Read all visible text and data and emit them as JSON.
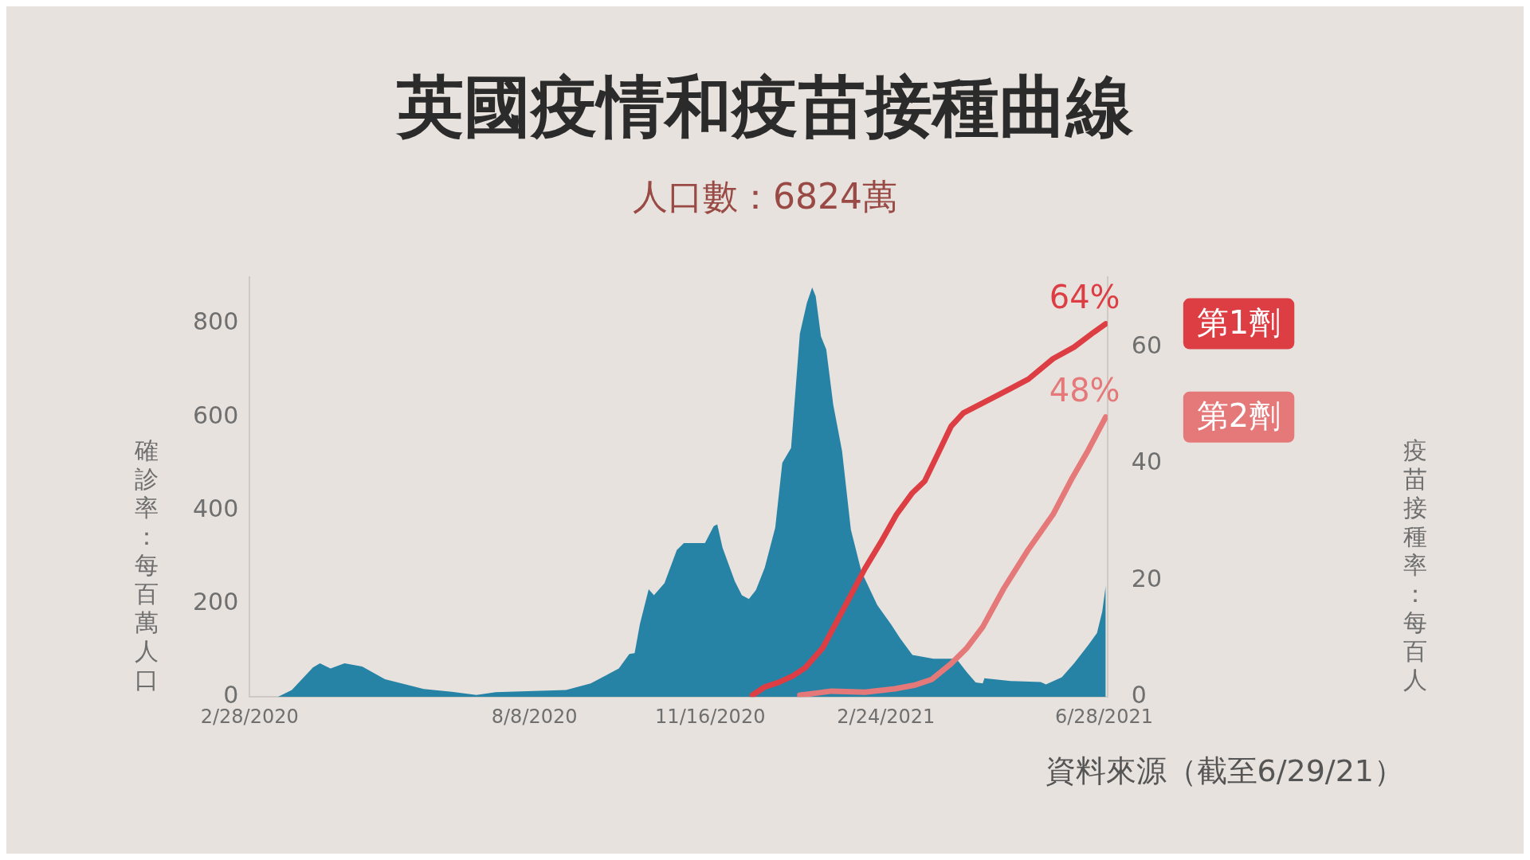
{
  "chart_data": {
    "type": "area",
    "title": "英國疫情和疫苗接種曲線",
    "subtitle": "人口數：6824萬",
    "ylabel": "確診率：每百萬人口",
    "y2label": "疫苗接種率：每百人",
    "annotations": [
      "資料來源（截至6/29/21）"
    ],
    "xlim": [
      "2020-02-28",
      "2021-06-30"
    ],
    "xticks": [
      {
        "value": "2020-02-28",
        "label": "2/28/2020"
      },
      {
        "value": "2020-08-08",
        "label": "8/8/2020"
      },
      {
        "value": "2020-11-16",
        "label": "11/16/2020"
      },
      {
        "value": "2021-02-24",
        "label": "2/24/2021"
      },
      {
        "value": "2021-06-28",
        "label": "6/28/2021"
      }
    ],
    "ylim": [
      0,
      900
    ],
    "yticks": [
      0,
      200,
      400,
      600,
      800
    ],
    "y2lim": [
      0,
      72
    ],
    "y2ticks": [
      0,
      20,
      40,
      60
    ],
    "grid": false,
    "legend": false,
    "marker": "none",
    "series": [
      {
        "type": "area",
        "color": "#2683a5",
        "x": [
          "2020-03-15",
          "2020-03-23",
          "2020-04-04",
          "2020-04-08",
          "2020-04-14",
          "2020-04-22",
          "2020-05-02",
          "2020-05-15",
          "2020-06-06",
          "2020-06-22",
          "2020-07-06",
          "2020-07-17",
          "2020-08-26",
          "2020-09-09",
          "2020-09-25",
          "2020-10-01",
          "2020-10-04",
          "2020-10-07",
          "2020-10-12",
          "2020-10-15",
          "2020-10-21",
          "2020-10-28",
          "2020-11-01",
          "2020-11-13",
          "2020-11-18",
          "2020-11-20",
          "2020-11-23",
          "2020-11-30",
          "2020-12-04",
          "2020-12-08",
          "2020-12-12",
          "2020-12-17",
          "2020-12-23",
          "2020-12-27",
          "2021-01-01",
          "2021-01-06",
          "2021-01-10",
          "2021-01-13",
          "2021-01-15",
          "2021-01-18",
          "2021-01-21",
          "2021-01-25",
          "2021-01-30",
          "2021-02-04",
          "2021-02-10",
          "2021-02-19",
          "2021-02-27",
          "2021-03-04",
          "2021-03-11",
          "2021-03-23",
          "2021-04-05",
          "2021-04-11",
          "2021-04-16",
          "2021-04-20",
          "2021-04-21",
          "2021-05-06",
          "2021-05-23",
          "2021-05-26",
          "2021-06-04",
          "2021-06-11",
          "2021-06-19",
          "2021-06-24",
          "2021-06-27",
          "2021-06-29"
        ],
        "values": [
          0,
          15,
          63,
          72,
          61,
          72,
          65,
          38,
          17,
          11,
          4,
          10,
          15,
          29,
          61,
          92,
          94,
          156,
          231,
          218,
          244,
          315,
          330,
          330,
          366,
          370,
          320,
          248,
          218,
          210,
          229,
          277,
          363,
          502,
          534,
          779,
          845,
          878,
          859,
          773,
          745,
          626,
          527,
          359,
          269,
          197,
          155,
          126,
          90,
          82,
          82,
          53,
          31,
          29,
          40,
          34,
          32,
          27,
          42,
          72,
          111,
          137,
          183,
          239
        ]
      },
      {
        "type": "line",
        "axis": "y2",
        "name": "第1劑",
        "color": "#dc3e44",
        "x": [
          "2020-12-10",
          "2020-12-17",
          "2020-12-25",
          "2021-01-02",
          "2021-01-09",
          "2021-01-19",
          "2021-01-31",
          "2021-02-12",
          "2021-02-21",
          "2021-03-02",
          "2021-03-11",
          "2021-03-18",
          "2021-03-26",
          "2021-04-02",
          "2021-04-09",
          "2021-04-29",
          "2021-05-16",
          "2021-05-30",
          "2021-06-11",
          "2021-06-22",
          "2021-06-29"
        ],
        "values": [
          0.3,
          1.7,
          2.5,
          3.6,
          5,
          8.4,
          15.2,
          22,
          26.5,
          31.3,
          35,
          37,
          42,
          46.4,
          48.7,
          51.8,
          54.5,
          58,
          60,
          62.5,
          64
        ],
        "value_labels": [
          null,
          null,
          null,
          null,
          null,
          null,
          null,
          null,
          null,
          null,
          null,
          null,
          null,
          null,
          null,
          null,
          null,
          null,
          null,
          null,
          "64%"
        ]
      },
      {
        "type": "line",
        "axis": "y2",
        "name": "第2劑",
        "color": "#e57878",
        "x": [
          "2021-01-06",
          "2021-01-24",
          "2021-02-12",
          "2021-03-01",
          "2021-03-12",
          "2021-03-22",
          "2021-04-02",
          "2021-04-11",
          "2021-04-20",
          "2021-05-02",
          "2021-05-16",
          "2021-05-30",
          "2021-06-10",
          "2021-06-19",
          "2021-06-26",
          "2021-06-29"
        ],
        "values": [
          0.3,
          1,
          0.8,
          1.4,
          2,
          3,
          5.7,
          8.4,
          12,
          18.6,
          25.3,
          31.3,
          37.6,
          42.3,
          46.3,
          48
        ],
        "value_labels": [
          null,
          null,
          null,
          null,
          null,
          null,
          null,
          null,
          null,
          null,
          null,
          null,
          null,
          null,
          null,
          "48%"
        ]
      }
    ]
  }
}
